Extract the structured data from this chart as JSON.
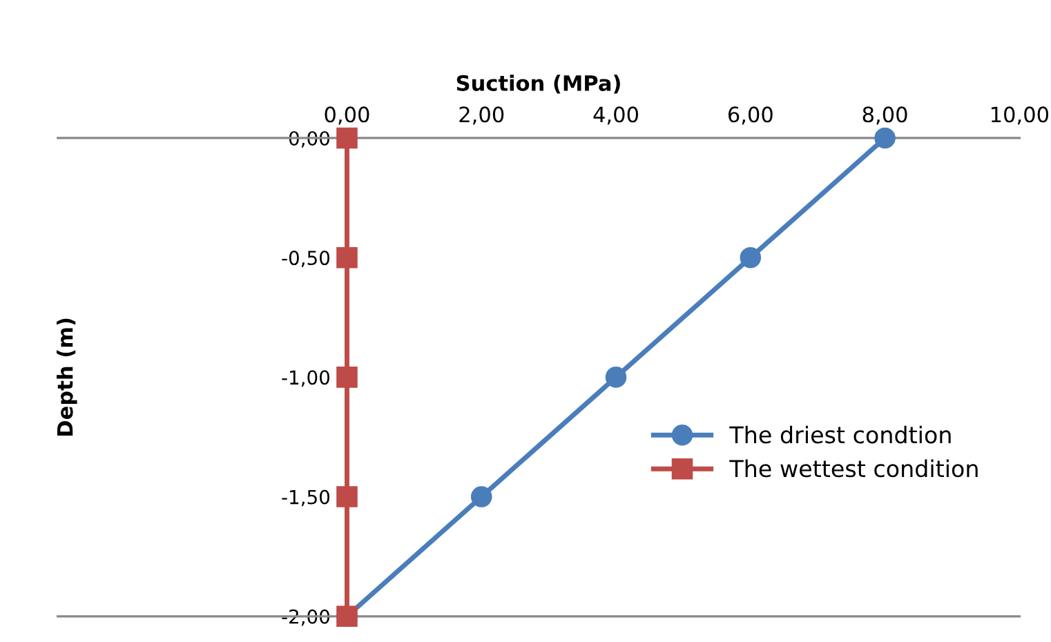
{
  "chart_data": {
    "type": "line",
    "xlabel": "Suction (MPa)",
    "ylabel": "Depth (m)",
    "xlim": [
      -4.3,
      10
    ],
    "ylim": [
      -2,
      0
    ],
    "xticks": [
      {
        "value": 0,
        "label": "0,00"
      },
      {
        "value": 2,
        "label": "2,00"
      },
      {
        "value": 4,
        "label": "4,00"
      },
      {
        "value": 6,
        "label": "6,00"
      },
      {
        "value": 8,
        "label": "8,00"
      },
      {
        "value": 10,
        "label": "10,00"
      }
    ],
    "yticks": [
      {
        "value": 0,
        "label": "0,00"
      },
      {
        "value": -0.5,
        "label": "-0,50"
      },
      {
        "value": -1,
        "label": "-1,00"
      },
      {
        "value": -1.5,
        "label": "-1,50"
      },
      {
        "value": -2,
        "label": "-2,00"
      }
    ],
    "grid": false,
    "legend": "right",
    "line_style": "solid",
    "series": [
      {
        "name": "The driest condtion",
        "color": "#4a7ebb",
        "marker": "circle",
        "x": [
          8,
          6,
          4,
          2,
          0
        ],
        "values": [
          0,
          -0.5,
          -1,
          -1.5,
          -2
        ]
      },
      {
        "name": "The wettest condition",
        "color": "#be4b48",
        "marker": "square",
        "x": [
          0,
          0,
          0,
          0,
          0
        ],
        "values": [
          0,
          -0.5,
          -1,
          -1.5,
          -2
        ]
      }
    ]
  }
}
